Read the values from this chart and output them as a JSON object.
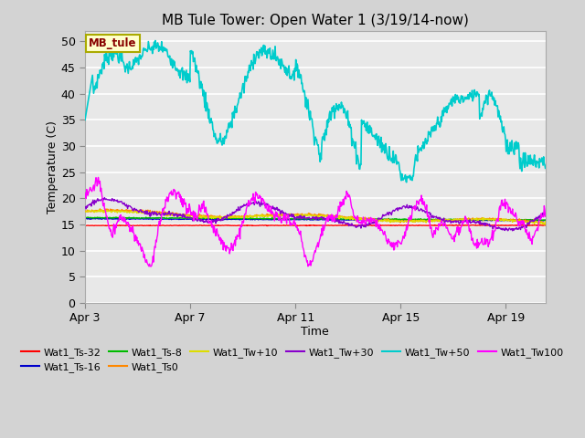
{
  "title": "MB Tule Tower: Open Water 1 (3/19/14-now)",
  "xlabel": "Time",
  "ylabel": "Temperature (C)",
  "xlim": [
    0,
    17.5
  ],
  "ylim": [
    0,
    52
  ],
  "yticks": [
    0,
    5,
    10,
    15,
    20,
    25,
    30,
    35,
    40,
    45,
    50
  ],
  "xtick_labels": [
    "Apr 3",
    "Apr 7",
    "Apr 11",
    "Apr 15",
    "Apr 19"
  ],
  "xtick_pos": [
    0,
    4,
    8,
    12,
    16
  ],
  "fig_bg": "#d3d3d3",
  "plot_bg": "#e8e8e8",
  "grid_color": "white",
  "series_colors": {
    "Wat1_Ts-32": "#ff0000",
    "Wat1_Ts-16": "#0000cc",
    "Wat1_Ts-8": "#00bb00",
    "Wat1_Ts0": "#ff8800",
    "Wat1_Tw+10": "#dddd00",
    "Wat1_Tw+30": "#8800cc",
    "Wat1_Tw+50": "#00cccc",
    "Wat1_Tw100": "#ff00ff"
  },
  "MB_tule_box_facecolor": "#ffffcc",
  "MB_tule_box_edgecolor": "#aaaa00",
  "MB_tule_text_color": "#880000"
}
